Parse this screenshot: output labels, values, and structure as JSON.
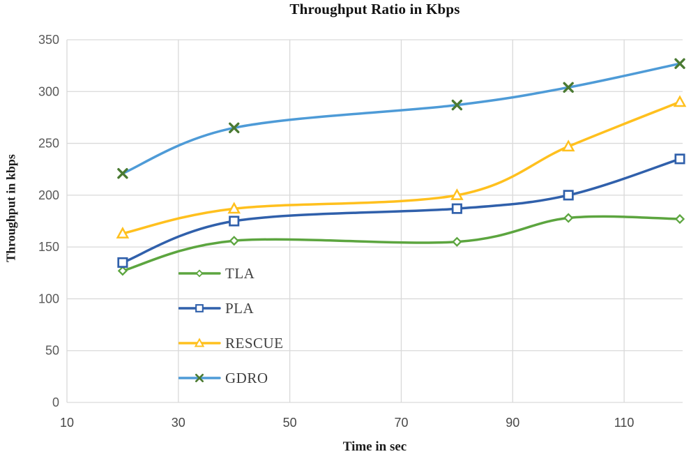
{
  "chart_data": {
    "type": "line",
    "title": "Throughput Ratio in Kbps",
    "xlabel": "Time in sec",
    "ylabel": "Throughput in kbps",
    "x": [
      20,
      40,
      80,
      100,
      120
    ],
    "series": [
      {
        "name": "TLA",
        "color": "#5CA53F",
        "marker": "diamond",
        "marker_color": "#5CA53F",
        "values": [
          127,
          156,
          155,
          178,
          177
        ]
      },
      {
        "name": "PLA",
        "color": "#3060AB",
        "marker": "square",
        "marker_color": "#3060AB",
        "values": [
          135,
          175,
          187,
          200,
          235
        ]
      },
      {
        "name": "RESCUE",
        "color": "#FFC01E",
        "marker": "triangle",
        "marker_color": "#FFC01E",
        "values": [
          163,
          187,
          200,
          247,
          290
        ]
      },
      {
        "name": "GDRO",
        "color": "#4E9BD7",
        "marker": "xmark",
        "marker_color": "#4A7A32",
        "values": [
          221,
          265,
          287,
          304,
          327
        ]
      }
    ],
    "xticks": [
      10,
      30,
      50,
      70,
      90,
      110
    ],
    "yticks": [
      0,
      50,
      100,
      150,
      200,
      250,
      300,
      350
    ],
    "xlim": [
      10,
      120.5
    ],
    "ylim": [
      0,
      350
    ],
    "grid": true,
    "legend_position": "inside-bottom-left",
    "colors": {
      "grid": "#D9D9D9",
      "y_tick_label": "#595959",
      "x_tick_label": "#474747",
      "title": "#121212",
      "axis_title": "#1C1C1C",
      "legend_text": "#3F3F3F",
      "background": "#FFFFFF"
    }
  }
}
